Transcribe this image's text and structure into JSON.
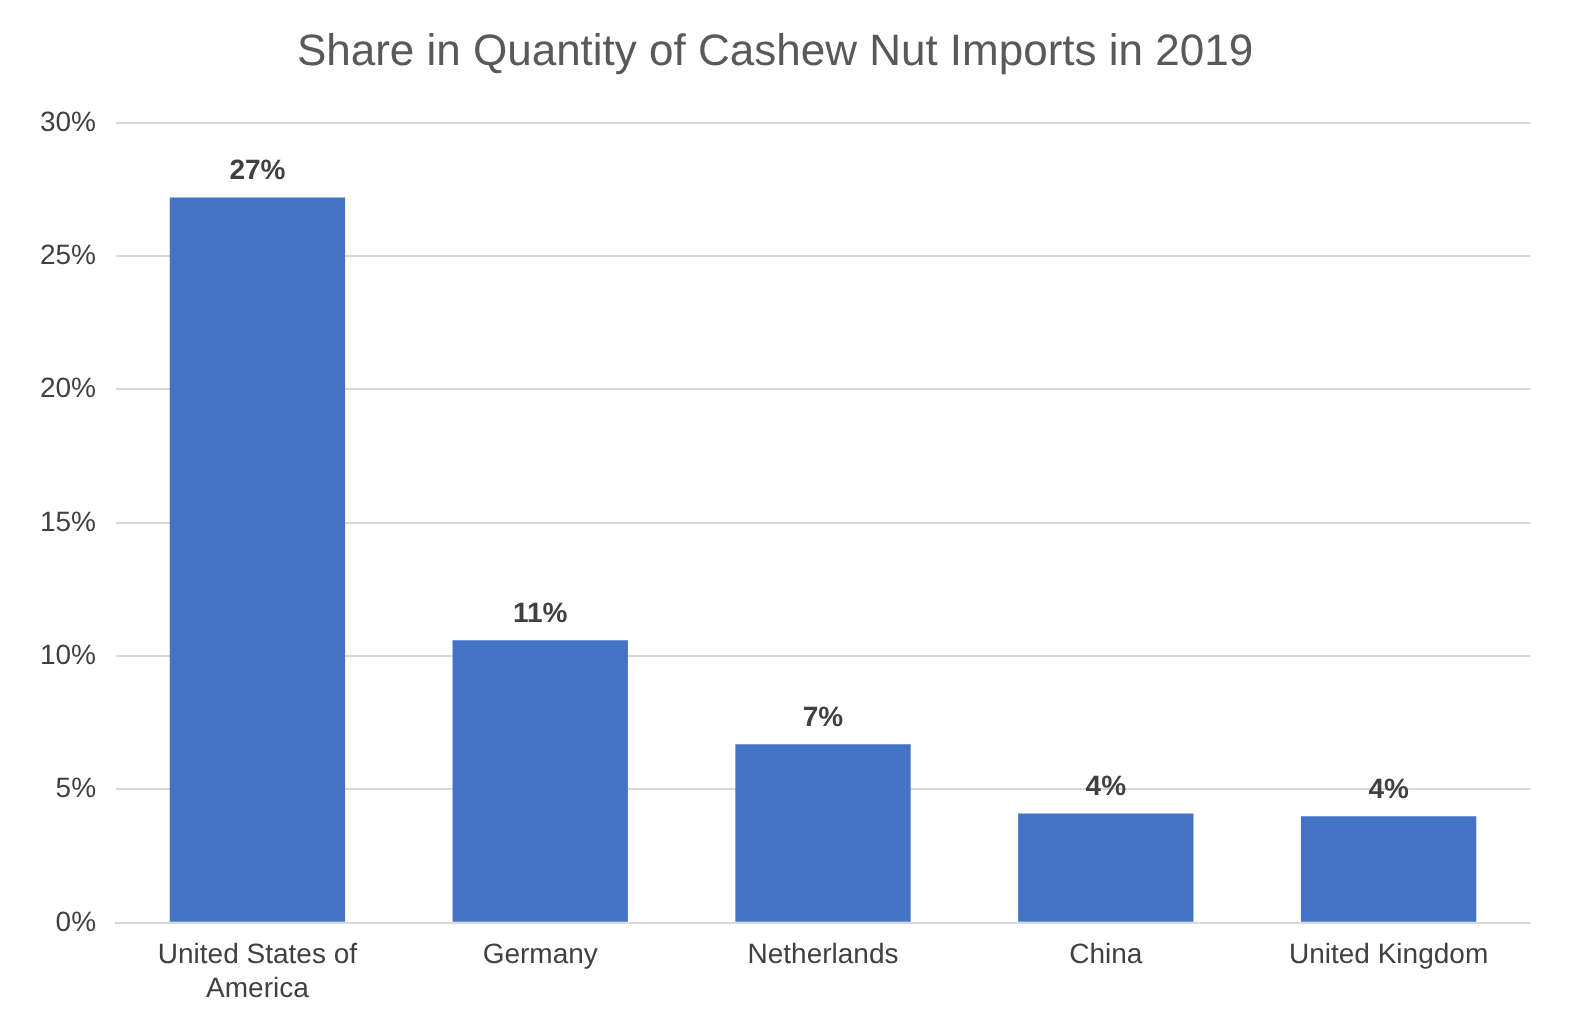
{
  "chart_data": {
    "type": "bar",
    "title": "Share in Quantity of Cashew Nut Imports in 2019",
    "categories": [
      "United States of America",
      "Germany",
      "Netherlands",
      "China",
      "United Kingdom"
    ],
    "values": [
      27.2,
      10.6,
      6.7,
      4.1,
      4.0
    ],
    "value_labels": [
      "27%",
      "11%",
      "7%",
      "4%",
      "4%"
    ],
    "color": "#4472c4",
    "ylim": [
      0,
      30
    ],
    "yticks": [
      {
        "value": 0,
        "label": "0%"
      },
      {
        "value": 5,
        "label": "5%"
      },
      {
        "value": 10,
        "label": "10%"
      },
      {
        "value": 15,
        "label": "15%"
      },
      {
        "value": 20,
        "label": "20%"
      },
      {
        "value": 25,
        "label": "25%"
      },
      {
        "value": 30,
        "label": "30%"
      }
    ],
    "grid": "y",
    "legend": false
  }
}
